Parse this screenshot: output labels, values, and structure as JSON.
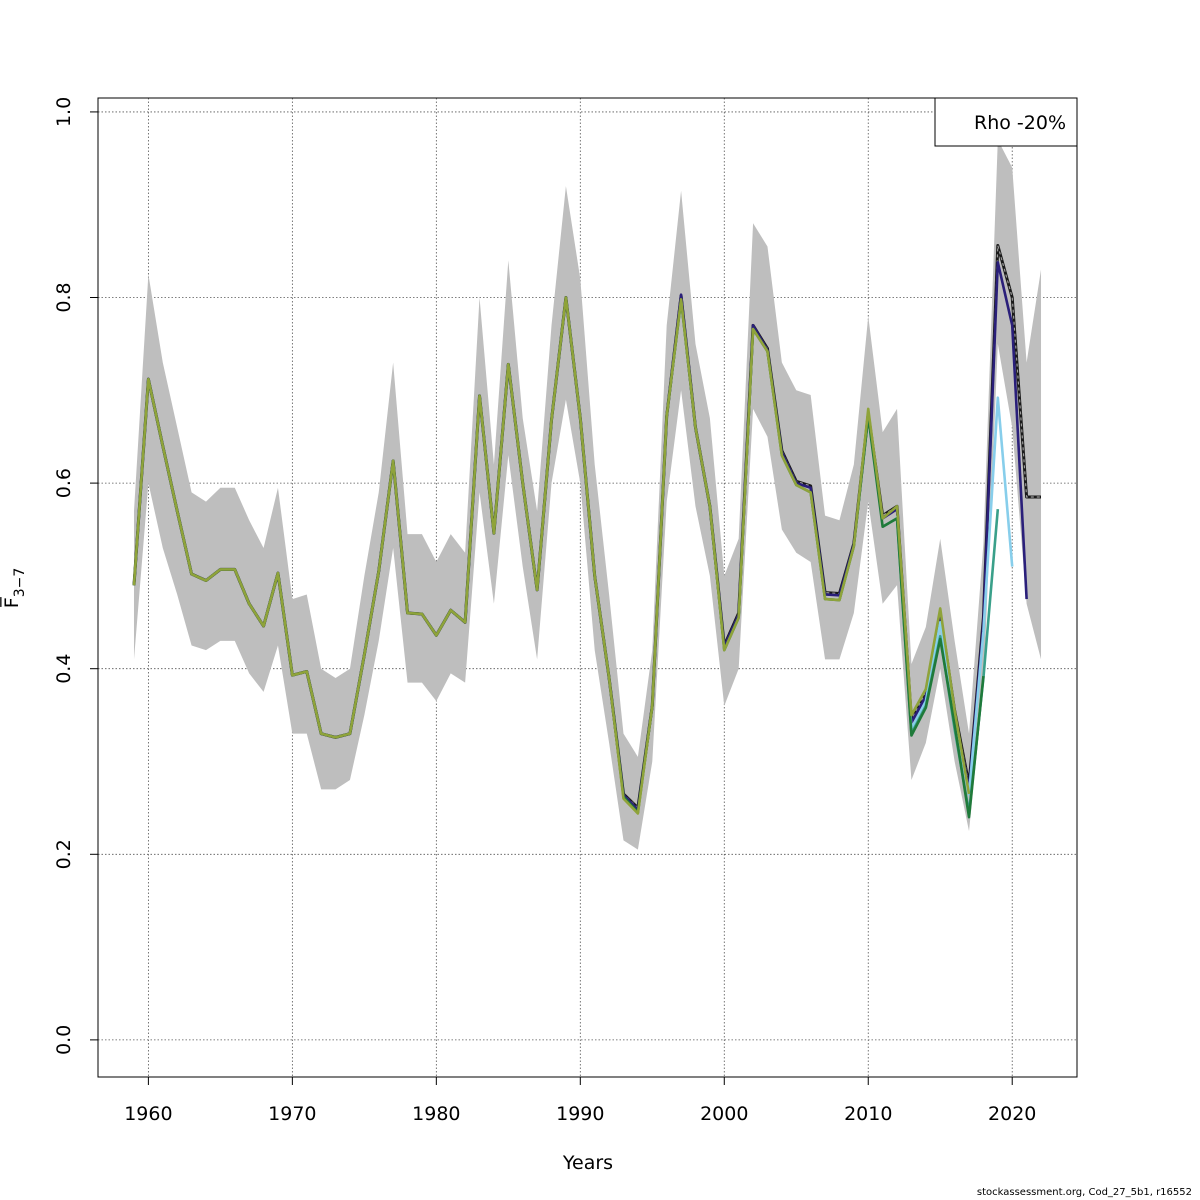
{
  "chart_data": {
    "type": "line",
    "title": "",
    "xlabel": "Years",
    "ylabel": "F̅",
    "ylabel_sub": "3−7",
    "xlim": [
      1956.5,
      2024.5
    ],
    "ylim": [
      -0.04,
      1.015
    ],
    "x_ticks": [
      1960,
      1970,
      1980,
      1990,
      2000,
      2010,
      2020
    ],
    "x_tick_labels": [
      "1960",
      "1970",
      "1980",
      "1990",
      "2000",
      "2010",
      "2020"
    ],
    "y_ticks": [
      0.0,
      0.2,
      0.4,
      0.6,
      0.8,
      1.0
    ],
    "y_tick_labels": [
      "0.0",
      "0.2",
      "0.4",
      "0.6",
      "0.8",
      "1.0"
    ],
    "grid": true,
    "legend": {
      "position": "top-right",
      "text": "Rho -20%"
    },
    "confidence_band": {
      "color": "#bebebe",
      "x": [
        1959,
        1960,
        1961,
        1962,
        1963,
        1964,
        1965,
        1966,
        1967,
        1968,
        1969,
        1970,
        1971,
        1972,
        1973,
        1974,
        1975,
        1976,
        1977,
        1978,
        1979,
        1980,
        1981,
        1982,
        1983,
        1984,
        1985,
        1986,
        1987,
        1988,
        1989,
        1990,
        1991,
        1992,
        1993,
        1994,
        1995,
        1996,
        1997,
        1998,
        1999,
        2000,
        2001,
        2002,
        2003,
        2004,
        2005,
        2006,
        2007,
        2008,
        2009,
        2010,
        2011,
        2012,
        2013,
        2014,
        2015,
        2016,
        2017,
        2018,
        2019,
        2020,
        2021,
        2022
      ],
      "upper": [
        0.57,
        0.825,
        0.73,
        0.66,
        0.59,
        0.58,
        0.595,
        0.595,
        0.56,
        0.53,
        0.595,
        0.475,
        0.48,
        0.4,
        0.39,
        0.4,
        0.5,
        0.59,
        0.73,
        0.545,
        0.545,
        0.515,
        0.545,
        0.525,
        0.8,
        0.62,
        0.84,
        0.67,
        0.57,
        0.77,
        0.92,
        0.82,
        0.62,
        0.48,
        0.33,
        0.305,
        0.42,
        0.77,
        0.915,
        0.75,
        0.67,
        0.5,
        0.54,
        0.88,
        0.855,
        0.73,
        0.7,
        0.695,
        0.565,
        0.56,
        0.62,
        0.78,
        0.655,
        0.68,
        0.405,
        0.445,
        0.54,
        0.43,
        0.33,
        0.535,
        0.97,
        0.94,
        0.73,
        0.83
      ],
      "lower": [
        0.41,
        0.6,
        0.53,
        0.48,
        0.425,
        0.42,
        0.43,
        0.43,
        0.395,
        0.375,
        0.425,
        0.33,
        0.33,
        0.27,
        0.27,
        0.28,
        0.35,
        0.43,
        0.53,
        0.385,
        0.385,
        0.365,
        0.395,
        0.385,
        0.59,
        0.47,
        0.63,
        0.51,
        0.41,
        0.6,
        0.69,
        0.6,
        0.42,
        0.32,
        0.215,
        0.205,
        0.3,
        0.58,
        0.7,
        0.575,
        0.5,
        0.36,
        0.4,
        0.68,
        0.65,
        0.55,
        0.525,
        0.515,
        0.41,
        0.41,
        0.46,
        0.58,
        0.47,
        0.49,
        0.28,
        0.32,
        0.4,
        0.3,
        0.225,
        0.38,
        0.75,
        0.66,
        0.47,
        0.41
      ]
    },
    "series": [
      {
        "color": "#1a1a1a",
        "dashed": true,
        "x": [
          1959,
          1960,
          1961,
          1962,
          1963,
          1964,
          1965,
          1966,
          1967,
          1968,
          1969,
          1970,
          1971,
          1972,
          1973,
          1974,
          1975,
          1976,
          1977,
          1978,
          1979,
          1980,
          1981,
          1982,
          1983,
          1984,
          1985,
          1986,
          1987,
          1988,
          1989,
          1990,
          1991,
          1992,
          1993,
          1994,
          1995,
          1996,
          1997,
          1998,
          1999,
          2000,
          2001,
          2002,
          2003,
          2004,
          2005,
          2006,
          2007,
          2008,
          2009,
          2010,
          2011,
          2012,
          2013,
          2014,
          2015,
          2016,
          2017,
          2018,
          2019,
          2020,
          2021,
          2022
        ],
        "values": [
          0.49,
          0.712,
          0.64,
          0.57,
          0.502,
          0.495,
          0.507,
          0.507,
          0.47,
          0.446,
          0.503,
          0.393,
          0.397,
          0.33,
          0.326,
          0.33,
          0.415,
          0.505,
          0.624,
          0.46,
          0.459,
          0.436,
          0.463,
          0.45,
          0.694,
          0.546,
          0.728,
          0.6,
          0.485,
          0.668,
          0.8,
          0.67,
          0.5,
          0.39,
          0.265,
          0.25,
          0.36,
          0.672,
          0.802,
          0.66,
          0.575,
          0.425,
          0.46,
          0.77,
          0.745,
          0.635,
          0.602,
          0.597,
          0.482,
          0.481,
          0.535,
          0.675,
          0.565,
          0.575,
          0.345,
          0.375,
          0.46,
          0.355,
          0.275,
          0.455,
          0.856,
          0.8,
          0.585,
          0.585
        ]
      },
      {
        "color": "#2a1f7a",
        "dashed": false,
        "x": [
          1959,
          1960,
          1961,
          1962,
          1963,
          1964,
          1965,
          1966,
          1967,
          1968,
          1969,
          1970,
          1971,
          1972,
          1973,
          1974,
          1975,
          1976,
          1977,
          1978,
          1979,
          1980,
          1981,
          1982,
          1983,
          1984,
          1985,
          1986,
          1987,
          1988,
          1989,
          1990,
          1991,
          1992,
          1993,
          1994,
          1995,
          1996,
          1997,
          1998,
          1999,
          2000,
          2001,
          2002,
          2003,
          2004,
          2005,
          2006,
          2007,
          2008,
          2009,
          2010,
          2011,
          2012,
          2013,
          2014,
          2015,
          2016,
          2017,
          2018,
          2019,
          2020,
          2021
        ],
        "values": [
          0.49,
          0.712,
          0.64,
          0.57,
          0.502,
          0.495,
          0.507,
          0.507,
          0.47,
          0.446,
          0.503,
          0.393,
          0.397,
          0.33,
          0.326,
          0.33,
          0.415,
          0.505,
          0.624,
          0.46,
          0.459,
          0.436,
          0.463,
          0.45,
          0.694,
          0.546,
          0.728,
          0.6,
          0.485,
          0.668,
          0.8,
          0.67,
          0.5,
          0.39,
          0.264,
          0.248,
          0.36,
          0.672,
          0.803,
          0.66,
          0.575,
          0.424,
          0.458,
          0.77,
          0.743,
          0.633,
          0.6,
          0.595,
          0.48,
          0.479,
          0.534,
          0.674,
          0.562,
          0.572,
          0.342,
          0.37,
          0.455,
          0.35,
          0.27,
          0.45,
          0.838,
          0.77,
          0.475
        ]
      },
      {
        "color": "#87ceeb",
        "dashed": false,
        "x": [
          2012,
          2013,
          2014,
          2015,
          2016,
          2017,
          2018,
          2019,
          2020
        ],
        "values": [
          0.565,
          0.335,
          0.365,
          0.45,
          0.345,
          0.265,
          0.44,
          0.692,
          0.51
        ]
      },
      {
        "color": "#3aa08a",
        "dashed": false,
        "x": [
          2011,
          2012,
          2013,
          2014,
          2015,
          2016,
          2017,
          2018,
          2019
        ],
        "values": [
          0.553,
          0.562,
          0.33,
          0.36,
          0.435,
          0.335,
          0.245,
          0.39,
          0.572
        ]
      },
      {
        "color": "#1f7a3a",
        "dashed": false,
        "x": [
          1959,
          1960,
          1961,
          1962,
          1963,
          1964,
          1965,
          1966,
          1967,
          1968,
          1969,
          1970,
          1971,
          1972,
          1973,
          1974,
          1975,
          1976,
          1977,
          1978,
          1979,
          1980,
          1981,
          1982,
          1983,
          1984,
          1985,
          1986,
          1987,
          1988,
          1989,
          1990,
          1991,
          1992,
          1993,
          1994,
          1995,
          1996,
          1997,
          1998,
          1999,
          2000,
          2001,
          2002,
          2003,
          2004,
          2005,
          2006,
          2007,
          2008,
          2009,
          2010,
          2011,
          2012,
          2013,
          2014,
          2015,
          2016,
          2017,
          2018
        ],
        "values": [
          0.49,
          0.712,
          0.64,
          0.57,
          0.502,
          0.495,
          0.507,
          0.507,
          0.47,
          0.446,
          0.503,
          0.393,
          0.397,
          0.33,
          0.326,
          0.33,
          0.415,
          0.505,
          0.624,
          0.46,
          0.459,
          0.436,
          0.463,
          0.45,
          0.694,
          0.546,
          0.728,
          0.6,
          0.485,
          0.668,
          0.8,
          0.67,
          0.5,
          0.39,
          0.262,
          0.245,
          0.36,
          0.672,
          0.797,
          0.66,
          0.575,
          0.42,
          0.455,
          0.766,
          0.742,
          0.63,
          0.598,
          0.59,
          0.475,
          0.474,
          0.532,
          0.672,
          0.553,
          0.562,
          0.328,
          0.358,
          0.432,
          0.34,
          0.24,
          0.392
        ]
      },
      {
        "color": "#8fa33a",
        "dashed": false,
        "x": [
          1959,
          1960,
          1961,
          1962,
          1963,
          1964,
          1965,
          1966,
          1967,
          1968,
          1969,
          1970,
          1971,
          1972,
          1973,
          1974,
          1975,
          1976,
          1977,
          1978,
          1979,
          1980,
          1981,
          1982,
          1983,
          1984,
          1985,
          1986,
          1987,
          1988,
          1989,
          1990,
          1991,
          1992,
          1993,
          1994,
          1995,
          1996,
          1997,
          1998,
          1999,
          2000,
          2001,
          2002,
          2003,
          2004,
          2005,
          2006,
          2007,
          2008,
          2009,
          2010,
          2011,
          2012,
          2013,
          2014,
          2015,
          2016,
          2017
        ],
        "values": [
          0.49,
          0.712,
          0.64,
          0.57,
          0.502,
          0.495,
          0.507,
          0.507,
          0.47,
          0.446,
          0.503,
          0.393,
          0.397,
          0.33,
          0.326,
          0.33,
          0.415,
          0.505,
          0.624,
          0.46,
          0.459,
          0.436,
          0.463,
          0.45,
          0.694,
          0.546,
          0.728,
          0.6,
          0.485,
          0.668,
          0.8,
          0.67,
          0.5,
          0.39,
          0.26,
          0.244,
          0.36,
          0.672,
          0.798,
          0.66,
          0.575,
          0.42,
          0.455,
          0.766,
          0.742,
          0.63,
          0.598,
          0.59,
          0.475,
          0.474,
          0.532,
          0.68,
          0.562,
          0.575,
          0.35,
          0.378,
          0.465,
          0.355,
          0.265
        ]
      }
    ]
  },
  "footer": {
    "text": "stockassessment.org, Cod_27_5b1, r16552"
  }
}
